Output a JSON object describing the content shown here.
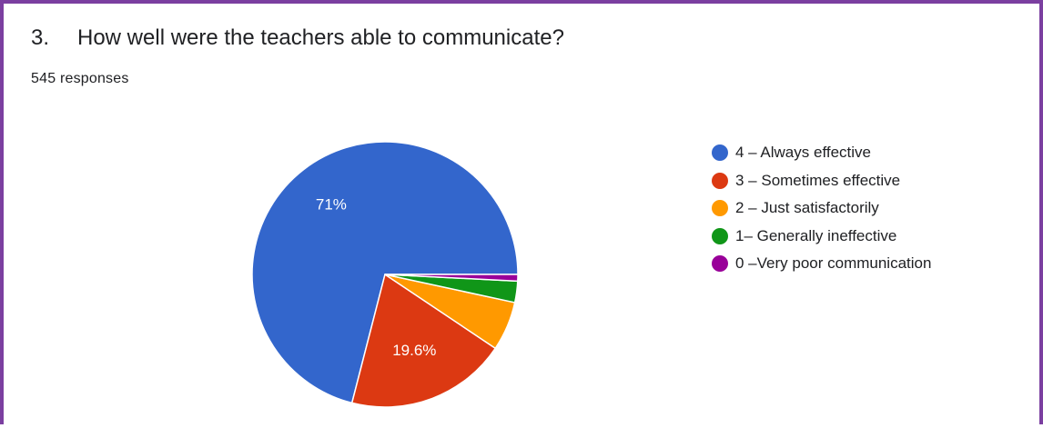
{
  "question": {
    "number": "3.",
    "title": "How well were the teachers able to communicate?",
    "responses": "545 responses"
  },
  "colors": {
    "border": "#7b3fa0"
  },
  "chart_data": {
    "type": "pie",
    "title": "How well were the teachers able to communicate?",
    "categories": [
      "4 – Always effective",
      "3 – Sometimes effective",
      "2 – Just satisfactorily",
      "1– Generally ineffective",
      "0 –Very poor communication"
    ],
    "values": [
      71.0,
      19.6,
      6.0,
      2.6,
      0.8
    ],
    "colors": [
      "#3366cc",
      "#dc3912",
      "#ff9900",
      "#109618",
      "#990099"
    ],
    "data_labels": [
      "71%",
      "19.6%",
      "",
      "",
      ""
    ],
    "legend_position": "right"
  }
}
